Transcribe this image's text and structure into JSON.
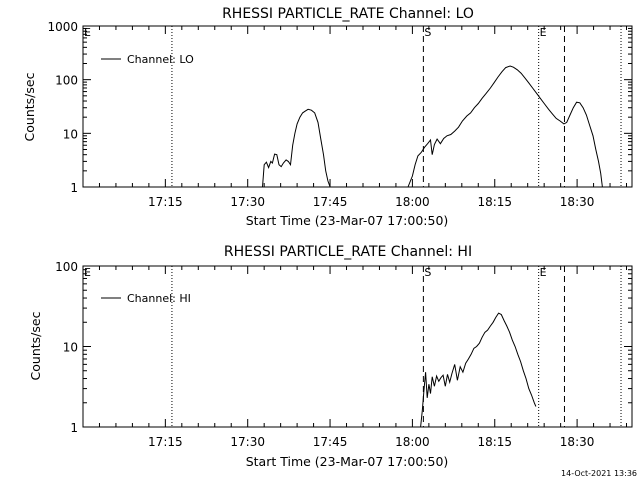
{
  "timestamp": "14-Oct-2021 13:36",
  "chart_data": [
    {
      "type": "line",
      "title": "RHESSI PARTICLE_RATE Channel: LO",
      "xlabel": "Start Time (23-Mar-07 17:00:50)",
      "ylabel": "Counts/sec",
      "yscale": "log",
      "xlim_min": [
        0,
        100
      ],
      "ylim": [
        1,
        1000
      ],
      "xticks": [
        {
          "min": 15,
          "label": "17:15"
        },
        {
          "min": 30,
          "label": "17:30"
        },
        {
          "min": 45,
          "label": "17:45"
        },
        {
          "min": 60,
          "label": "18:00"
        },
        {
          "min": 75,
          "label": "18:15"
        },
        {
          "min": 90,
          "label": "18:30"
        }
      ],
      "yticks": [
        {
          "value": 1,
          "label": "1"
        },
        {
          "value": 10,
          "label": "10"
        },
        {
          "value": 100,
          "label": "100"
        },
        {
          "value": 1000,
          "label": "1000"
        }
      ],
      "legend": "Channel: LO",
      "markers": [
        {
          "label": "E",
          "min": 0,
          "style": "none"
        },
        {
          "label": "S",
          "min": 62,
          "style": "dashed"
        },
        {
          "label": "E",
          "min": 83,
          "style": "dotted"
        }
      ],
      "vlines_dotted": [
        16.2,
        83,
        98
      ],
      "vlines_dashed": [
        62,
        87.7
      ],
      "series": [
        {
          "name": "Channel: LO",
          "x": [
            32.7,
            33,
            33.4,
            33.8,
            34.2,
            34.5,
            34.9,
            35.3,
            35.7,
            36.1,
            36.5,
            37,
            37.4,
            37.8,
            38.2,
            38.6,
            39,
            39.5,
            40,
            40.5,
            41,
            41.6,
            42.2,
            42.8,
            43.3,
            43.8,
            44.2,
            44.6,
            45
          ],
          "y": [
            1,
            2.6,
            2.9,
            2.3,
            3,
            2.8,
            4.1,
            4,
            2.6,
            2.4,
            2.8,
            3.2,
            3,
            2.6,
            6,
            10,
            15,
            20,
            24,
            26,
            28,
            27,
            24,
            16,
            8,
            4,
            2,
            1.3,
            1
          ]
        },
        {
          "name": "Channel: LO",
          "x": [
            59.2,
            60,
            60.5,
            61,
            61.6,
            62.2,
            62.8,
            63.3,
            63.6,
            64,
            64.5,
            65.1,
            65.7,
            66.3,
            67,
            67.7,
            68.4,
            69.1,
            69.9,
            70.6,
            71.3,
            72,
            72.7,
            73.4,
            74.2,
            74.9,
            75.6,
            76.3,
            77,
            77.8,
            78.4,
            79.1,
            79.8,
            80.5,
            81.2,
            81.9,
            82.6,
            83.3,
            84,
            84.8,
            85.5,
            86.2,
            86.9,
            87.6,
            88.1,
            88.7,
            89.3,
            89.9,
            90.5,
            91.1,
            91.7,
            92.3,
            92.9,
            93.4,
            93.9,
            94.3,
            94.6
          ],
          "y": [
            1,
            1.6,
            2.6,
            3.8,
            4.4,
            5.5,
            6.5,
            7.5,
            4,
            6.2,
            7.8,
            6.4,
            8,
            9,
            9.5,
            11,
            13,
            17,
            21,
            24,
            30,
            36,
            45,
            55,
            70,
            88,
            112,
            140,
            168,
            180,
            171,
            153,
            132,
            108,
            87,
            70,
            56,
            45,
            36,
            28,
            23,
            19,
            17,
            15,
            16,
            22,
            30,
            38,
            37,
            30,
            22,
            14,
            9,
            5,
            3,
            1.8,
            1
          ]
        }
      ]
    },
    {
      "type": "line",
      "title": "RHESSI PARTICLE_RATE Channel: HI",
      "xlabel": "Start Time (23-Mar-07 17:00:50)",
      "ylabel": "Counts/sec",
      "yscale": "log",
      "xlim_min": [
        0,
        100
      ],
      "ylim": [
        1,
        100
      ],
      "xticks": [
        {
          "min": 15,
          "label": "17:15"
        },
        {
          "min": 30,
          "label": "17:30"
        },
        {
          "min": 45,
          "label": "17:45"
        },
        {
          "min": 60,
          "label": "18:00"
        },
        {
          "min": 75,
          "label": "18:15"
        },
        {
          "min": 90,
          "label": "18:30"
        }
      ],
      "yticks": [
        {
          "value": 1,
          "label": "1"
        },
        {
          "value": 10,
          "label": "10"
        },
        {
          "value": 100,
          "label": "100"
        }
      ],
      "legend": "Channel: HI",
      "markers": [
        {
          "label": "E",
          "min": 0,
          "style": "none"
        },
        {
          "label": "S",
          "min": 62,
          "style": "dashed"
        },
        {
          "label": "E",
          "min": 83,
          "style": "dotted"
        }
      ],
      "vlines_dotted": [
        16.2,
        83,
        98
      ],
      "vlines_dashed": [
        62,
        87.7
      ],
      "series": [
        {
          "name": "Channel: HI",
          "x": [
            61.5,
            61.8,
            62.1,
            62.4,
            62.7,
            63,
            63.3,
            63.6,
            64,
            64.4,
            64.8,
            65.2,
            65.6,
            66,
            66.4,
            66.8,
            67.2,
            67.7,
            68.2,
            68.7,
            69.2,
            69.7,
            70.2,
            70.7,
            71.2,
            71.7,
            72.2,
            72.7,
            73.2,
            73.7,
            74.2,
            74.7,
            75.2,
            75.7,
            76.2,
            76.7,
            77.2,
            77.7,
            78.2,
            78.7,
            79.2,
            79.7,
            80.2,
            80.7,
            81.2,
            81.7,
            82.2,
            82.5
          ],
          "y": [
            1,
            1.6,
            2.8,
            4.8,
            2.3,
            3.4,
            2.6,
            4.2,
            3.2,
            4.3,
            3.7,
            4.1,
            4.4,
            3.2,
            4.5,
            3.6,
            4.6,
            6,
            3.8,
            5.6,
            4.8,
            6.2,
            7,
            8,
            9.5,
            10,
            11,
            13,
            15,
            16,
            18,
            20,
            23,
            26,
            25,
            21,
            18,
            15,
            12,
            10,
            8,
            6.5,
            5,
            4,
            3,
            2.5,
            2,
            1.8
          ]
        }
      ]
    }
  ]
}
